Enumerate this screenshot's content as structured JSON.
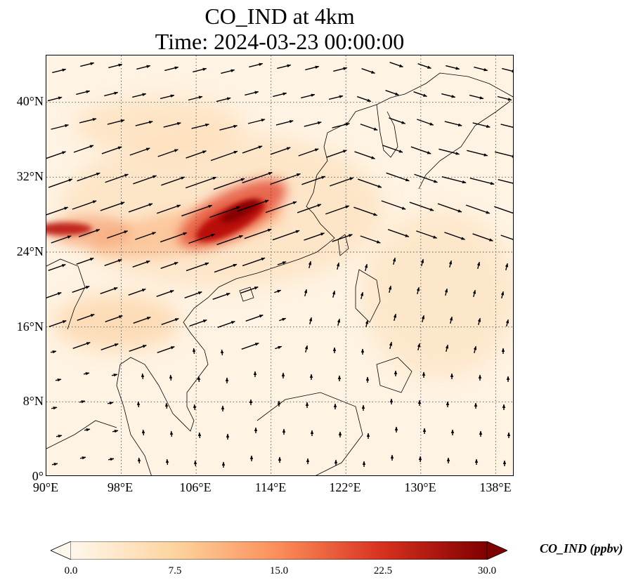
{
  "title_line1": "CO_IND at 4km",
  "title_line2": "Time: 2024-03-23 00:00:00",
  "map": {
    "lon_range": [
      90,
      140
    ],
    "lat_range": [
      0,
      45
    ],
    "x_ticks": [
      "90°E",
      "98°E",
      "106°E",
      "114°E",
      "122°E",
      "130°E",
      "138°E"
    ],
    "y_ticks": [
      "0°",
      "8°N",
      "16°N",
      "24°N",
      "32°N",
      "40°N"
    ],
    "gridlines": "dotted",
    "vectors": "wind arrows",
    "colormap": "OrRd"
  },
  "colorbar": {
    "label": "CO_IND (ppbv)",
    "ticks": [
      "0.0",
      "7.5",
      "15.0",
      "22.5",
      "30.0"
    ],
    "range": [
      0,
      30
    ],
    "colors": [
      "#fff7ec",
      "#fdd49e",
      "#fc8d59",
      "#d7301f",
      "#7f0000"
    ],
    "extend": "both"
  }
}
